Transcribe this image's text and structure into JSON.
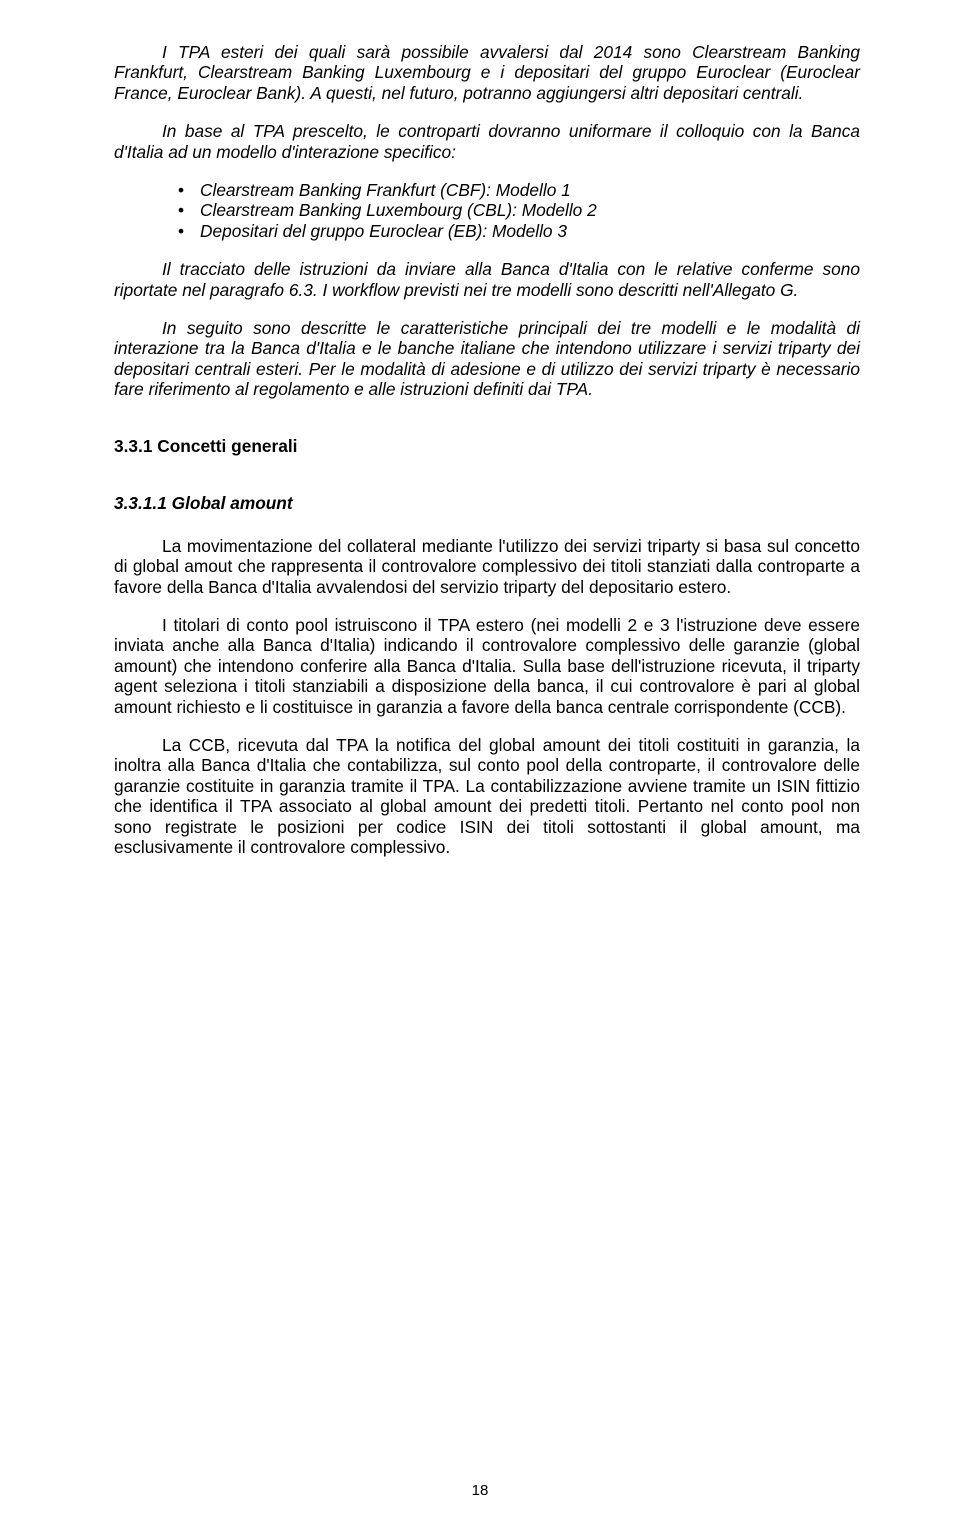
{
  "p1": "I TPA esteri dei quali sarà possibile avvalersi dal 2014 sono Clearstream Banking Frankfurt, Clearstream Banking Luxembourg e i depositari del gruppo Euroclear (Euroclear France, Euroclear Bank). A questi, nel futuro, potranno aggiungersi altri depositari centrali.",
  "p2": "In base al TPA prescelto, le controparti dovranno uniformare il colloquio con la Banca d'Italia ad un modello d'interazione specifico:",
  "bullets": [
    "Clearstream Banking Frankfurt (CBF): Modello 1",
    "Clearstream Banking Luxembourg (CBL): Modello 2",
    "Depositari del gruppo Euroclear (EB): Modello 3"
  ],
  "p3": "Il tracciato delle istruzioni da inviare alla Banca d'Italia con le relative conferme sono riportate nel paragrafo 6.3. I workflow previsti nei tre modelli sono descritti nell'Allegato G.",
  "p4": "In seguito sono descritte le caratteristiche principali dei tre modelli e le modalità di interazione tra la Banca d'Italia e le banche italiane che intendono utilizzare i servizi triparty dei depositari centrali esteri. Per le modalità di adesione e di utilizzo dei servizi triparty è necessario fare riferimento al regolamento e alle istruzioni definiti dai TPA.",
  "h1": "3.3.1 Concetti generali",
  "h2": "3.3.1.1 Global amount",
  "p5": "La movimentazione del collateral mediante l'utilizzo dei servizi triparty si basa sul concetto di global amout che rappresenta il controvalore complessivo dei titoli stanziati dalla controparte a favore della Banca d'Italia avvalendosi del servizio triparty del depositario estero.",
  "p6": "I titolari di conto pool istruiscono il TPA estero (nei modelli 2 e 3 l'istruzione deve essere inviata anche alla Banca d'Italia) indicando il controvalore complessivo delle garanzie (global amount) che intendono conferire alla Banca d'Italia. Sulla base dell'istruzione ricevuta, il triparty agent seleziona i titoli stanziabili a disposizione della banca, il cui controvalore è pari al global amount richiesto e li costituisce in garanzia a favore della banca centrale corrispondente (CCB).",
  "p7": "La CCB, ricevuta dal TPA la notifica del global amount dei titoli costituiti in garanzia, la inoltra alla Banca d'Italia che contabilizza, sul conto pool della controparte, il controvalore delle garanzie costituite in garanzia tramite il TPA. La contabilizzazione avviene tramite un ISIN fittizio che identifica il TPA associato al global amount dei predetti titoli.  Pertanto nel conto pool non sono registrate le posizioni per codice ISIN dei titoli sottostanti il global amount, ma esclusivamente il controvalore complessivo.",
  "pageNumber": "18"
}
